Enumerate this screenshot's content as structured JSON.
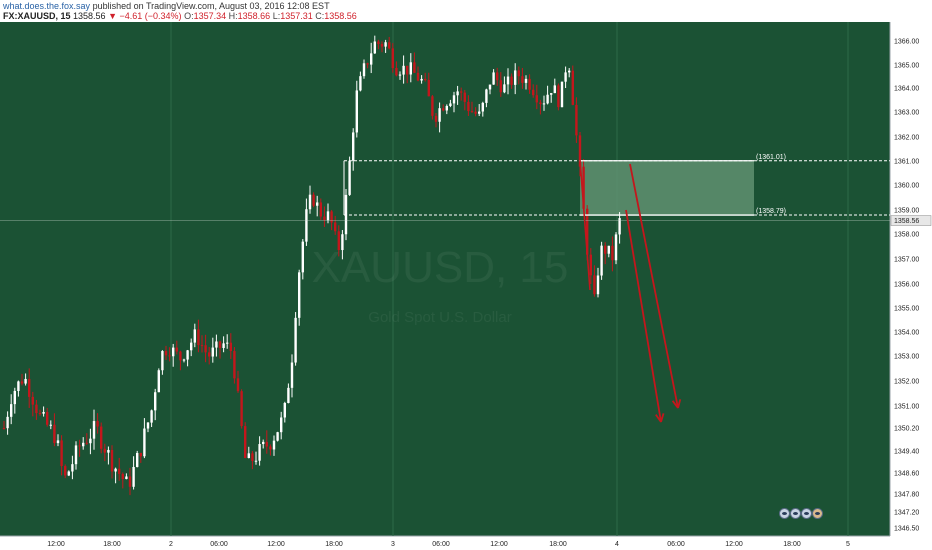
{
  "header": {
    "user": "what.does.the.fox.say",
    "published": " published on TradingView.com, August 03, 2016 12:08 EST",
    "symbol": "FX:XAUUSD, 15",
    "last": "1358.56",
    "change": "▼ −4.61 (−0.34%)",
    "o_label": "O:",
    "o_value": "1357.34",
    "h_label": "H:",
    "h_value": "1358.66",
    "l_label": "L:",
    "l_value": "1357.31",
    "c_label": "C:",
    "c_value": "1358.56"
  },
  "watermark": {
    "symbol": "XAUUSD, 15",
    "subtitle": "Gold Spot U.S. Dollar"
  },
  "colors": {
    "background": "#1b5234",
    "up": "#ffffff",
    "down": "#c4161c",
    "arrow": "#c4161c",
    "zone": "#5f9171"
  },
  "chart_data": {
    "type": "candlestick",
    "y_axis_ticks": [
      "1366.00",
      "1365.00",
      "1364.00",
      "1363.00",
      "1362.00",
      "1361.00",
      "1360.00",
      "1359.00",
      "1358.00",
      "1357.00",
      "1356.00",
      "1355.00",
      "1354.00",
      "1353.00",
      "1352.00",
      "1351.00",
      "1350.20",
      "1349.40",
      "1348.60",
      "1347.80",
      "1347.20",
      "1346.50"
    ],
    "y_axis_values": [
      1366.0,
      1365.0,
      1364.0,
      1363.0,
      1362.0,
      1361.0,
      1360.0,
      1359.0,
      1358.0,
      1357.0,
      1356.0,
      1355.0,
      1354.0,
      1353.0,
      1352.0,
      1351.0,
      1350.2,
      1349.4,
      1348.6,
      1347.8,
      1347.2,
      1346.5
    ],
    "x_axis_ticks": [
      "12:00",
      "18:00",
      "2",
      "06:00",
      "12:00",
      "18:00",
      "3",
      "06:00",
      "12:00",
      "18:00",
      "4",
      "06:00",
      "12:00",
      "18:00",
      "5"
    ],
    "last_price_label": "1358.56",
    "last_price": 1358.56,
    "levels": [
      {
        "label": "(1361.01)",
        "value": 1361.01
      },
      {
        "label": "(1358.79)",
        "value": 1358.79
      }
    ],
    "zone": {
      "low": 1358.79,
      "high": 1361.01
    },
    "projection_arrows": 2,
    "grid": true
  }
}
